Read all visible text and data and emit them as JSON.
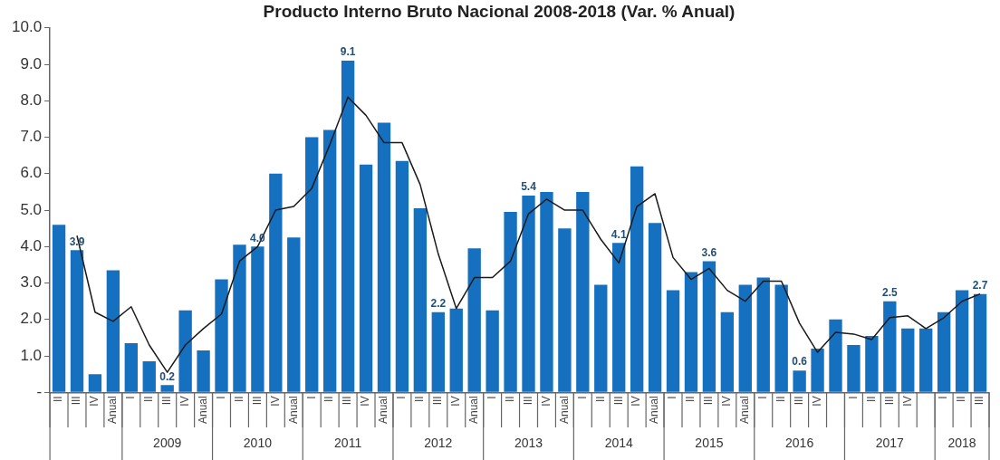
{
  "chart_data": {
    "type": "bar",
    "title": "Producto Interno Bruto Nacional 2008-2018 (Var. % Anual)",
    "categories": [
      "II",
      "III",
      "IV",
      "Anual",
      "I",
      "II",
      "III",
      "IV",
      "Anual",
      "I",
      "II",
      "III",
      "IV",
      "Anual",
      "I",
      "II",
      "III",
      "IV",
      "Anual",
      "I",
      "II",
      "III",
      "IV",
      "Anual",
      "I",
      "II",
      "III",
      "IV",
      "Anual",
      "I",
      "II",
      "III",
      "IV",
      "Anual",
      "I",
      "II",
      "III",
      "IV",
      "Anual",
      "I",
      "II",
      "III",
      "IV",
      null,
      "I",
      "II",
      "III",
      "IV",
      null,
      "I",
      "II",
      "III"
    ],
    "series": [
      {
        "type": "bar",
        "color": "#1670c0",
        "values": [
          4.6,
          3.9,
          0.5,
          3.35,
          1.35,
          0.85,
          0.2,
          2.25,
          1.15,
          3.1,
          4.05,
          4.0,
          6.0,
          4.25,
          7.0,
          7.2,
          9.1,
          6.25,
          7.4,
          6.35,
          5.05,
          2.2,
          2.3,
          3.95,
          2.25,
          4.95,
          5.4,
          5.5,
          4.5,
          5.5,
          2.95,
          4.1,
          6.2,
          4.65,
          2.8,
          3.3,
          3.6,
          2.2,
          2.95,
          3.15,
          2.95,
          0.6,
          1.2,
          2.0,
          1.3,
          1.55,
          2.5,
          1.75,
          1.75,
          2.2,
          2.8,
          2.7
        ],
        "value_labels": [
          null,
          "3.9",
          null,
          null,
          null,
          null,
          "0.2",
          null,
          null,
          null,
          null,
          "4.0",
          null,
          null,
          null,
          null,
          "9.1",
          null,
          null,
          null,
          null,
          "2.2",
          null,
          null,
          null,
          null,
          "5.4",
          null,
          null,
          null,
          null,
          "4.1",
          null,
          null,
          null,
          null,
          "3.6",
          null,
          null,
          null,
          null,
          "0.6",
          null,
          null,
          null,
          null,
          "2.5",
          null,
          null,
          null,
          null,
          "2.7"
        ]
      },
      {
        "type": "line",
        "color": "#1a1a1a",
        "values": [
          null,
          4.3,
          2.2,
          1.95,
          2.35,
          1.3,
          0.55,
          1.3,
          1.75,
          2.15,
          3.6,
          4.0,
          5.0,
          5.1,
          5.6,
          6.8,
          8.1,
          7.6,
          6.85,
          6.85,
          5.7,
          3.8,
          2.3,
          3.15,
          3.15,
          3.6,
          4.9,
          5.3,
          5.0,
          5.0,
          4.2,
          3.55,
          5.1,
          5.45,
          3.7,
          3.1,
          3.4,
          2.8,
          2.5,
          3.05,
          3.05,
          1.9,
          1.1,
          1.65,
          1.6,
          1.45,
          2.05,
          2.1,
          1.75,
          2.05,
          2.5,
          2.7
        ]
      }
    ],
    "ylim": [
      0,
      10
    ],
    "yticks": [
      {
        "value": 0,
        "label": "-"
      },
      {
        "value": 1,
        "label": "1.0"
      },
      {
        "value": 2,
        "label": "2.0"
      },
      {
        "value": 3,
        "label": "3.0"
      },
      {
        "value": 4,
        "label": "4.0"
      },
      {
        "value": 5,
        "label": "5.0"
      },
      {
        "value": 6,
        "label": "6.0"
      },
      {
        "value": 7,
        "label": "7.0"
      },
      {
        "value": 8,
        "label": "8.0"
      },
      {
        "value": 9,
        "label": "9.0"
      },
      {
        "value": 10,
        "label": "10.0"
      }
    ],
    "grid": false,
    "legend": false,
    "marker": "none",
    "annotations": [
      "2009",
      "2010",
      "2011",
      "2012",
      "2013",
      "2014",
      "2015",
      "2016",
      "2017",
      "2018"
    ]
  }
}
